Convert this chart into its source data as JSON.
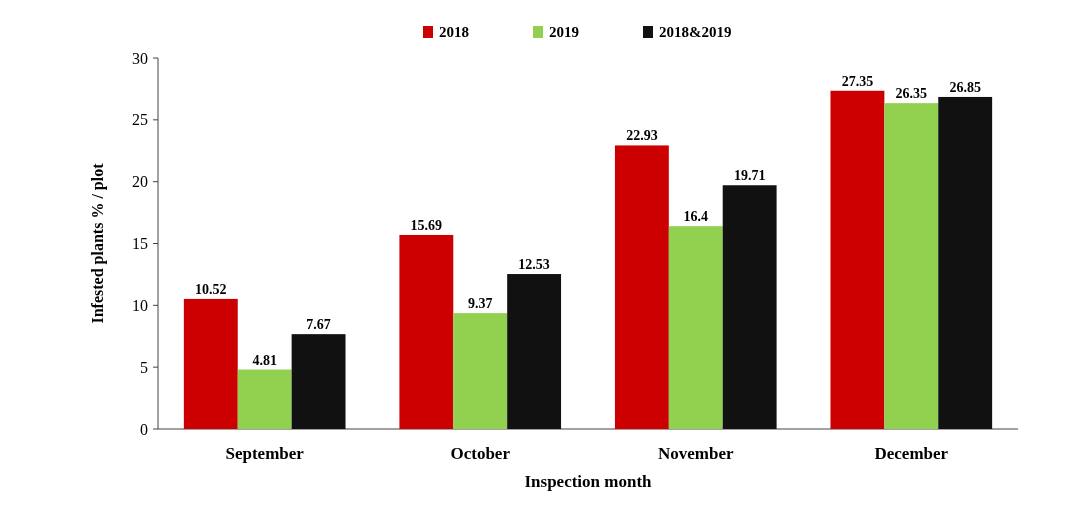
{
  "chart_data": {
    "type": "bar",
    "xlabel": "Inspection month",
    "ylabel": "Infested plants % / plot",
    "categories": [
      "September",
      "October",
      "November",
      "December"
    ],
    "series": [
      {
        "name": "2018",
        "color": "#cc0000",
        "values": [
          10.52,
          15.69,
          22.93,
          27.35
        ]
      },
      {
        "name": "2019",
        "color": "#92d050",
        "values": [
          4.81,
          9.37,
          16.4,
          26.35
        ]
      },
      {
        "name": "2018&2019",
        "color": "#111111",
        "values": [
          7.67,
          12.53,
          19.71,
          26.85
        ]
      }
    ],
    "ylim": [
      0,
      30
    ],
    "yticks": [
      0,
      5,
      10,
      15,
      20,
      25,
      30
    ],
    "data_labels": true,
    "legend": "top",
    "grid": false
  }
}
